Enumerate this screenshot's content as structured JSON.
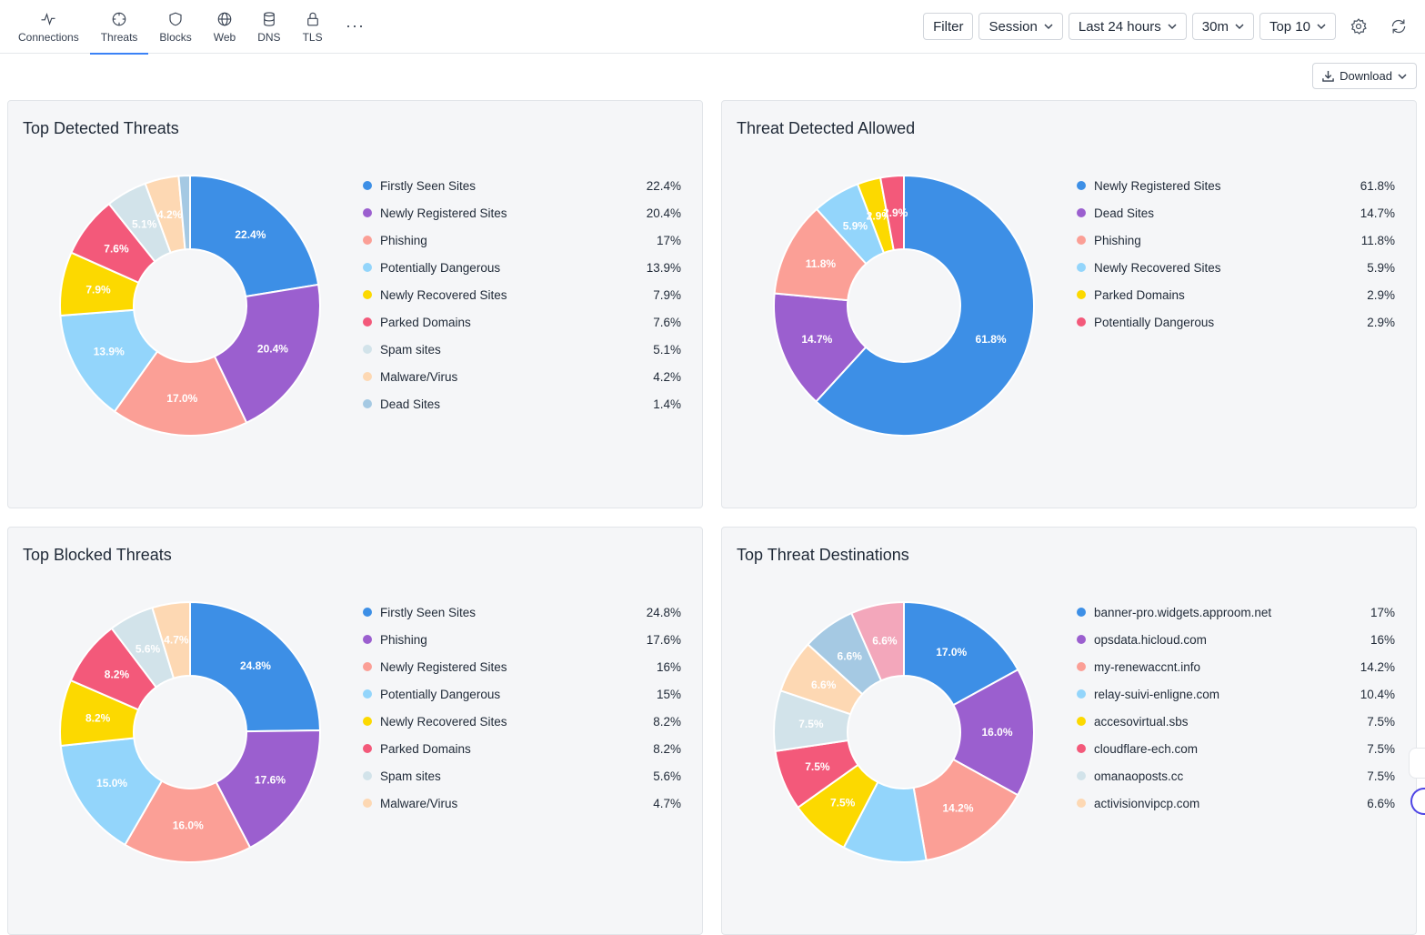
{
  "nav": {
    "items": [
      {
        "label": "Connections",
        "icon": "activity-icon"
      },
      {
        "label": "Threats",
        "icon": "crosshair-icon",
        "active": true
      },
      {
        "label": "Blocks",
        "icon": "shield-icon"
      },
      {
        "label": "Web",
        "icon": "globe-icon"
      },
      {
        "label": "DNS",
        "icon": "database-icon"
      },
      {
        "label": "TLS",
        "icon": "lock-icon"
      }
    ],
    "more": "···"
  },
  "controls": {
    "filter": "Filter",
    "session": "Session",
    "range": "Last 24 hours",
    "interval": "30m",
    "top": "Top 10"
  },
  "download": "Download",
  "colors": {
    "blue": "#3d8fe6",
    "purple": "#9b5fcf",
    "salmon": "#fb9f96",
    "lightblue": "#93d5fb",
    "yellow": "#fcd900",
    "red": "#f3597a",
    "paleblue": "#d2e3ea",
    "peach": "#fdd8b3",
    "steel": "#a5c9e3",
    "pink": "#f3a7bb",
    "accent": "#3b82f6"
  },
  "cards": [
    {
      "title": "Top Detected Threats",
      "chart_data": {
        "type": "pie",
        "categories": [
          "Firstly Seen Sites",
          "Newly Registered Sites",
          "Phishing",
          "Potentially Dangerous",
          "Newly Recovered Sites",
          "Parked Domains",
          "Spam sites",
          "Malware/Virus",
          "Dead Sites"
        ],
        "values": [
          22.4,
          20.4,
          17.0,
          13.9,
          7.9,
          7.6,
          5.1,
          4.2,
          1.4
        ],
        "slice_labels": [
          "22.4%",
          "20.4%",
          "17.0%",
          "13.9%",
          "7.9%",
          "7.6%",
          "5.1%",
          "4.2%",
          ""
        ],
        "legend_values": [
          "22.4%",
          "20.4%",
          "17%",
          "13.9%",
          "7.9%",
          "7.6%",
          "5.1%",
          "4.2%",
          "1.4%"
        ],
        "colors": [
          "#3d8fe6",
          "#9b5fcf",
          "#fb9f96",
          "#93d5fb",
          "#fcd900",
          "#f3597a",
          "#d2e3ea",
          "#fdd8b3",
          "#a5c9e3"
        ]
      }
    },
    {
      "title": "Threat Detected Allowed",
      "chart_data": {
        "type": "pie",
        "categories": [
          "Newly Registered Sites",
          "Dead Sites",
          "Phishing",
          "Newly Recovered Sites",
          "Parked Domains",
          "Potentially Dangerous"
        ],
        "values": [
          61.8,
          14.7,
          11.8,
          5.9,
          2.9,
          2.9
        ],
        "slice_labels": [
          "61.8%",
          "14.7%",
          "11.8%",
          "5.9%",
          "2.9%",
          "2.9%"
        ],
        "legend_values": [
          "61.8%",
          "14.7%",
          "11.8%",
          "5.9%",
          "2.9%",
          "2.9%"
        ],
        "colors": [
          "#3d8fe6",
          "#9b5fcf",
          "#fb9f96",
          "#93d5fb",
          "#fcd900",
          "#f3597a"
        ]
      }
    },
    {
      "title": "Top Blocked Threats",
      "chart_data": {
        "type": "pie",
        "categories": [
          "Firstly Seen Sites",
          "Phishing",
          "Newly Registered Sites",
          "Potentially Dangerous",
          "Newly Recovered Sites",
          "Parked Domains",
          "Spam sites",
          "Malware/Virus"
        ],
        "values": [
          24.8,
          17.6,
          16.0,
          15.0,
          8.2,
          8.2,
          5.6,
          4.7
        ],
        "slice_labels": [
          "24.8%",
          "17.6%",
          "16.0%",
          "15.0%",
          "8.2%",
          "8.2%",
          "5.6%",
          "4.7%"
        ],
        "legend_values": [
          "24.8%",
          "17.6%",
          "16%",
          "15%",
          "8.2%",
          "8.2%",
          "5.6%",
          "4.7%"
        ],
        "colors": [
          "#3d8fe6",
          "#9b5fcf",
          "#fb9f96",
          "#93d5fb",
          "#fcd900",
          "#f3597a",
          "#d2e3ea",
          "#fdd8b3"
        ]
      }
    },
    {
      "title": "Top Threat Destinations",
      "chart_data": {
        "type": "pie",
        "categories": [
          "banner-pro.widgets.approom.net",
          "opsdata.hicloud.com",
          "my-renewaccnt.info",
          "relay-suivi-enligne.com",
          "accesovirtual.sbs",
          "cloudflare-ech.com",
          "omanaoposts.cc",
          "activisionvipcp.com",
          "",
          ""
        ],
        "values": [
          17.0,
          16.0,
          14.2,
          10.4,
          7.5,
          7.5,
          7.5,
          6.6,
          6.6,
          6.6
        ],
        "slice_labels": [
          "17.0%",
          "16.0%",
          "14.2%",
          "",
          "7.5%",
          "7.5%",
          "7.5%",
          "6.6%",
          "6.6%",
          "6.6%"
        ],
        "legend_values": [
          "17%",
          "16%",
          "14.2%",
          "10.4%",
          "7.5%",
          "7.5%",
          "7.5%",
          "6.6%",
          "",
          ""
        ],
        "colors": [
          "#3d8fe6",
          "#9b5fcf",
          "#fb9f96",
          "#93d5fb",
          "#fcd900",
          "#f3597a",
          "#d2e3ea",
          "#fdd8b3",
          "#a5c9e3",
          "#f3a7bb"
        ]
      }
    }
  ]
}
